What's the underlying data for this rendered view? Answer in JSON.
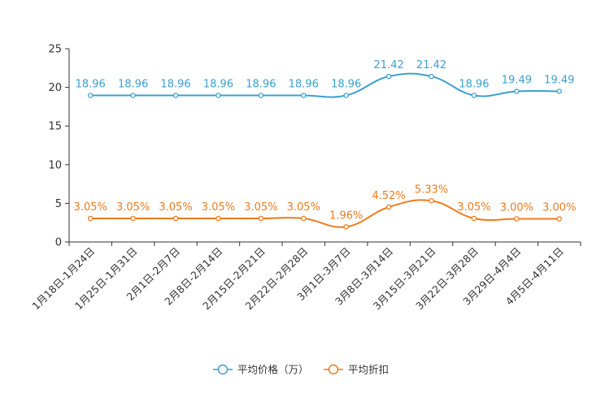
{
  "chart_data": {
    "type": "line",
    "title": "",
    "xlabel": "",
    "ylabel": "",
    "ylim": [
      0,
      25
    ],
    "yticks": [
      0,
      5,
      10,
      15,
      20,
      25
    ],
    "grid": false,
    "legend_position": "bottom-center",
    "categories": [
      "1月18日-1月24日",
      "1月25日-1月31日",
      "2月1日-2月7日",
      "2月8日-2月14日",
      "2月15日-2月21日",
      "2月22日-2月28日",
      "3月1日-3月7日",
      "3月8日-3月14日",
      "3月15日-3月21日",
      "3月22日-3月28日",
      "3月29日-4月4日",
      "4月5日-4月11日"
    ],
    "series": [
      {
        "name": "平均价格（万）",
        "color": "#3c9fcf",
        "values": [
          18.96,
          18.96,
          18.96,
          18.96,
          18.96,
          18.96,
          18.96,
          21.42,
          21.42,
          18.96,
          19.49,
          19.49
        ],
        "labels": [
          "18.96",
          "18.96",
          "18.96",
          "18.96",
          "18.96",
          "18.96",
          "18.96",
          "21.42",
          "21.42",
          "18.96",
          "19.49",
          "19.49"
        ]
      },
      {
        "name": "平均折扣",
        "color": "#f07a1c",
        "values": [
          3.05,
          3.05,
          3.05,
          3.05,
          3.05,
          3.05,
          1.96,
          4.52,
          5.33,
          3.05,
          3.0,
          3.0
        ],
        "labels": [
          "3.05%",
          "3.05%",
          "3.05%",
          "3.05%",
          "3.05%",
          "3.05%",
          "1.96%",
          "4.52%",
          "5.33%",
          "3.05%",
          "3.00%",
          "3.00%"
        ]
      }
    ]
  }
}
